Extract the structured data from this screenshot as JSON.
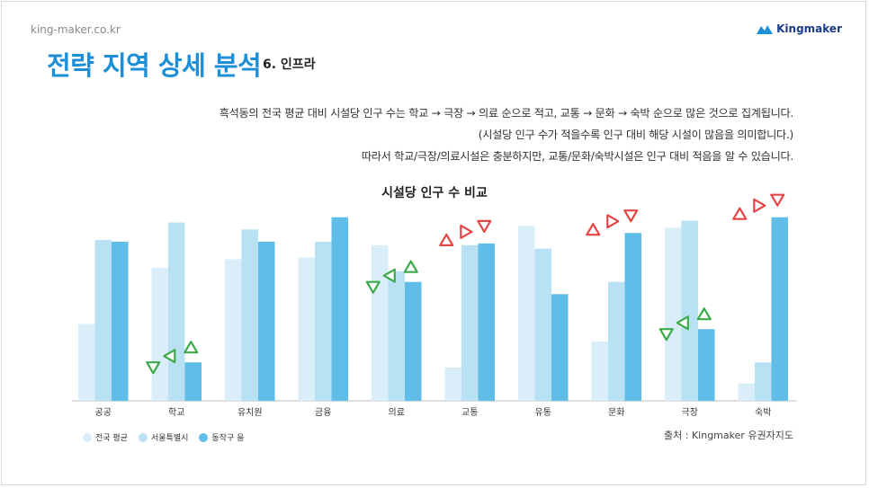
{
  "header": {
    "site": "king-maker.co.kr",
    "brand": "Kingmaker",
    "title": "전략 지역 상세 분석",
    "subtitle": "6. 인프라"
  },
  "description": [
    "흑석동의 전국 평균 대비 시설당 인구 수는 학교 → 극장 → 의료 순으로 적고, 교통 → 문화 → 숙박 순으로 많은 것으로 집계됩니다.",
    "(시설당 인구 수가 적을수록 인구 대비 해당 시설이 많음을 의미합니다.)",
    "따라서 학교/극장/의료시설은 충분하지만, 교통/문화/숙박시설은 인구 대비 적음을 알 수 있습니다."
  ],
  "source": "출처 : Kingmaker 유권자지도",
  "colors": {
    "accent": "#1d8fd8",
    "series": [
      "#d9eef8",
      "#b9e1f4",
      "#5fbde7"
    ],
    "green_marker": "#3daa4a",
    "red_marker": "#e64545"
  },
  "chart_data": {
    "type": "bar",
    "title": "시설당 인구 수 비교",
    "categories": [
      "공공",
      "학교",
      "유치원",
      "금융",
      "의료",
      "교통",
      "유통",
      "문화",
      "극장",
      "숙박"
    ],
    "series": [
      {
        "name": "전국 평균",
        "values": [
          44,
          76,
          81,
          82,
          89,
          19,
          100,
          34,
          99,
          10
        ]
      },
      {
        "name": "서울특별시",
        "values": [
          92,
          102,
          98,
          91,
          74,
          89,
          87,
          68,
          103,
          22
        ]
      },
      {
        "name": "동작구 을",
        "values": [
          91,
          22,
          91,
          105,
          68,
          90,
          61,
          96,
          41,
          105
        ]
      }
    ],
    "ylim": [
      0,
      110
    ],
    "grid": false,
    "legend_position": "bottom-left",
    "markers": [
      {
        "category": "학교",
        "type": "low",
        "color": "green"
      },
      {
        "category": "의료",
        "type": "low",
        "color": "green"
      },
      {
        "category": "교통",
        "type": "high",
        "color": "red"
      },
      {
        "category": "문화",
        "type": "high",
        "color": "red"
      },
      {
        "category": "극장",
        "type": "low",
        "color": "green"
      },
      {
        "category": "숙박",
        "type": "high",
        "color": "red"
      }
    ]
  }
}
